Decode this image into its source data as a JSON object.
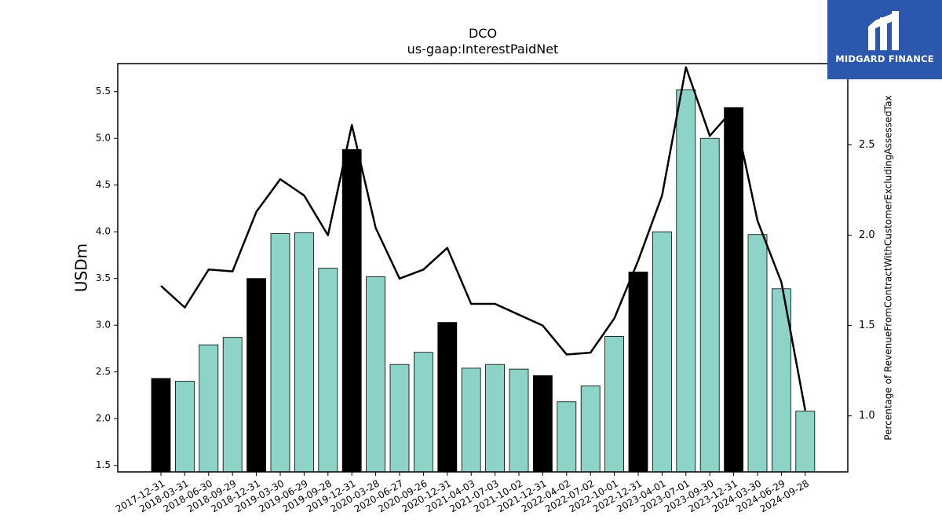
{
  "chart_data": {
    "type": "bar",
    "title": "DCO",
    "subtitle": "us-gaap:InterestPaidNet",
    "ylabel": "USDm",
    "y2label": "Percentage of RevenueFromContractWithCustomerExcludingAssessedTax",
    "ylim": [
      1.43,
      5.8
    ],
    "y2lim": [
      0.69,
      2.95
    ],
    "yticks": [
      "1.5",
      "2.0",
      "2.5",
      "3.0",
      "3.5",
      "4.0",
      "4.5",
      "5.0",
      "5.5"
    ],
    "y2ticks": [
      "1.0",
      "1.5",
      "2.0",
      "2.5"
    ],
    "categories": [
      "2017-12-31",
      "2018-03-31",
      "2018-06-30",
      "2018-09-29",
      "2018-12-31",
      "2019-03-30",
      "2019-06-29",
      "2019-09-28",
      "2019-12-31",
      "2020-03-28",
      "2020-06-27",
      "2020-09-26",
      "2020-12-31",
      "2021-04-03",
      "2021-07-03",
      "2021-10-02",
      "2021-12-31",
      "2022-04-02",
      "2022-07-02",
      "2022-10-01",
      "2022-12-31",
      "2023-04-01",
      "2023-07-01",
      "2023-09-30",
      "2023-12-31",
      "2024-03-30",
      "2024-06-29",
      "2024-09-28"
    ],
    "series": [
      {
        "type": "bar",
        "values": [
          2.43,
          2.4,
          2.79,
          2.87,
          3.5,
          3.98,
          3.99,
          3.61,
          4.88,
          3.52,
          2.58,
          2.71,
          3.03,
          2.54,
          2.58,
          2.53,
          2.46,
          2.18,
          2.35,
          2.88,
          3.57,
          4.0,
          5.52,
          5.0,
          5.33,
          3.97,
          3.39,
          2.08
        ],
        "year_end_flags": [
          true,
          false,
          false,
          false,
          true,
          false,
          false,
          false,
          true,
          false,
          false,
          false,
          true,
          false,
          false,
          false,
          true,
          false,
          false,
          false,
          true,
          false,
          false,
          false,
          true,
          false,
          false,
          false
        ]
      },
      {
        "type": "line",
        "axis": "right",
        "values": [
          1.72,
          1.6,
          1.81,
          1.8,
          2.13,
          2.31,
          2.22,
          2.0,
          2.61,
          2.04,
          1.76,
          1.81,
          1.93,
          1.62,
          1.62,
          1.56,
          1.5,
          1.34,
          1.35,
          1.54,
          1.86,
          2.22,
          2.93,
          2.55,
          2.7,
          2.08,
          1.74,
          1.03
        ]
      }
    ],
    "colors": {
      "bar": "#8dd3c7",
      "bar_year_end": "#000000",
      "line": "#000000"
    },
    "grid": false,
    "legend": "none"
  },
  "logo": {
    "text": "MIDGARD FINANCE"
  }
}
